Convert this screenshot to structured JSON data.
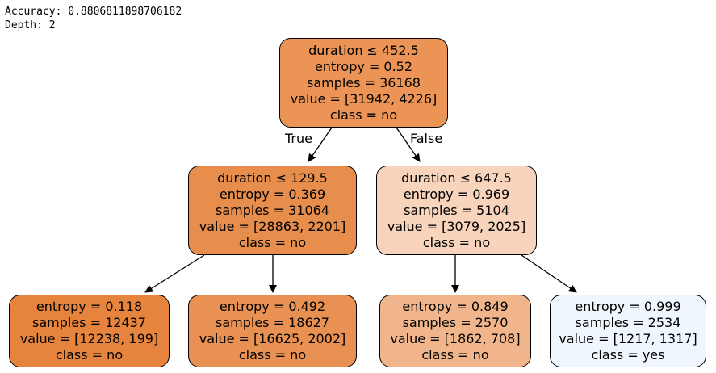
{
  "output": {
    "accuracy": "Accuracy: 0.8806811898706182",
    "depth": "Depth: 2"
  },
  "edge_labels": {
    "left": "True",
    "right": "False"
  },
  "tree": {
    "root": {
      "fill": "#eb9456",
      "lines": [
        "duration ≤ 452.5",
        "entropy = 0.52",
        "samples = 36168",
        "value = [31942, 4226]",
        "class = no"
      ]
    },
    "left": {
      "fill": "#e88e4d",
      "lines": [
        "duration ≤ 129.5",
        "entropy = 0.369",
        "samples = 31064",
        "value = [28863, 2201]",
        "class = no"
      ]
    },
    "right": {
      "fill": "#f7d4bb",
      "lines": [
        "duration ≤ 647.5",
        "entropy = 0.969",
        "samples = 5104",
        "value = [3079, 2025]",
        "class = no"
      ]
    },
    "leaf_ll": {
      "fill": "#e6843d",
      "lines": [
        "entropy = 0.118",
        "samples = 12437",
        "value = [12238, 199]",
        "class = no"
      ]
    },
    "leaf_lr": {
      "fill": "#e89152",
      "lines": [
        "entropy = 0.492",
        "samples = 18627",
        "value = [16625, 2002]",
        "class = no"
      ]
    },
    "leaf_rl": {
      "fill": "#f0b58a",
      "lines": [
        "entropy = 0.849",
        "samples = 2570",
        "value = [1862, 708]",
        "class = no"
      ]
    },
    "leaf_rr": {
      "fill": "#eff6fd",
      "lines": [
        "entropy = 0.999",
        "samples = 2534",
        "value = [1217, 1317]",
        "class = yes"
      ]
    }
  }
}
